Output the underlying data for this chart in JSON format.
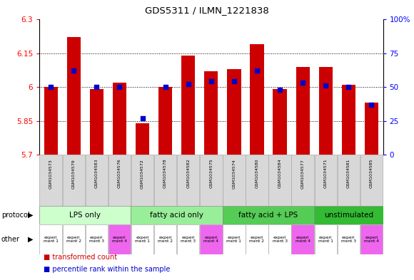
{
  "title": "GDS5311 / ILMN_1221838",
  "samples": [
    "GSM1034573",
    "GSM1034579",
    "GSM1034583",
    "GSM1034576",
    "GSM1034572",
    "GSM1034578",
    "GSM1034582",
    "GSM1034575",
    "GSM1034574",
    "GSM1034580",
    "GSM1034584",
    "GSM1034577",
    "GSM1034571",
    "GSM1034581",
    "GSM1034585"
  ],
  "transformed_count": [
    6.0,
    6.22,
    5.99,
    6.02,
    5.84,
    6.0,
    6.14,
    6.07,
    6.08,
    6.19,
    5.99,
    6.09,
    6.09,
    6.01,
    5.93
  ],
  "percentile_rank": [
    50,
    62,
    50,
    50,
    27,
    50,
    52,
    54,
    54,
    62,
    48,
    53,
    51,
    50,
    37
  ],
  "ylim_left": [
    5.7,
    6.3
  ],
  "ylim_right": [
    0,
    100
  ],
  "yticks_left": [
    5.7,
    5.85,
    6.0,
    6.15,
    6.3
  ],
  "ytick_labels_left": [
    "5.7",
    "5.85",
    "6",
    "6.15",
    "6.3"
  ],
  "yticks_right": [
    0,
    25,
    50,
    75,
    100
  ],
  "ytick_labels_right": [
    "0",
    "25",
    "50",
    "75",
    "100%"
  ],
  "bar_color": "#cc0000",
  "dot_color": "#0000cc",
  "bg_color": "#ffffff",
  "protocols": [
    {
      "label": "LPS only",
      "start": 0,
      "end": 4,
      "color": "#ccffcc"
    },
    {
      "label": "fatty acid only",
      "start": 4,
      "end": 8,
      "color": "#99ee99"
    },
    {
      "label": "fatty acid + LPS",
      "start": 8,
      "end": 12,
      "color": "#55cc55"
    },
    {
      "label": "unstimulated",
      "start": 12,
      "end": 15,
      "color": "#33bb33"
    }
  ],
  "other_labels": [
    "experi\nment 1",
    "experi\nment 2",
    "experi\nment 3",
    "experi\nment 4",
    "experi\nment 1",
    "experi\nment 2",
    "experi\nment 3",
    "experi\nment 4",
    "experi\nment 1",
    "experi\nment 2",
    "experi\nment 3",
    "experi\nment 4",
    "experi\nment 1",
    "experi\nment 3",
    "experi\nment 4"
  ],
  "other_colors": [
    "#ffffff",
    "#ffffff",
    "#ffffff",
    "#ee66ee",
    "#ffffff",
    "#ffffff",
    "#ffffff",
    "#ee66ee",
    "#ffffff",
    "#ffffff",
    "#ffffff",
    "#ee66ee",
    "#ffffff",
    "#ffffff",
    "#ee66ee"
  ],
  "sample_box_color": "#d8d8d8",
  "sample_box_border": "#aaaaaa"
}
